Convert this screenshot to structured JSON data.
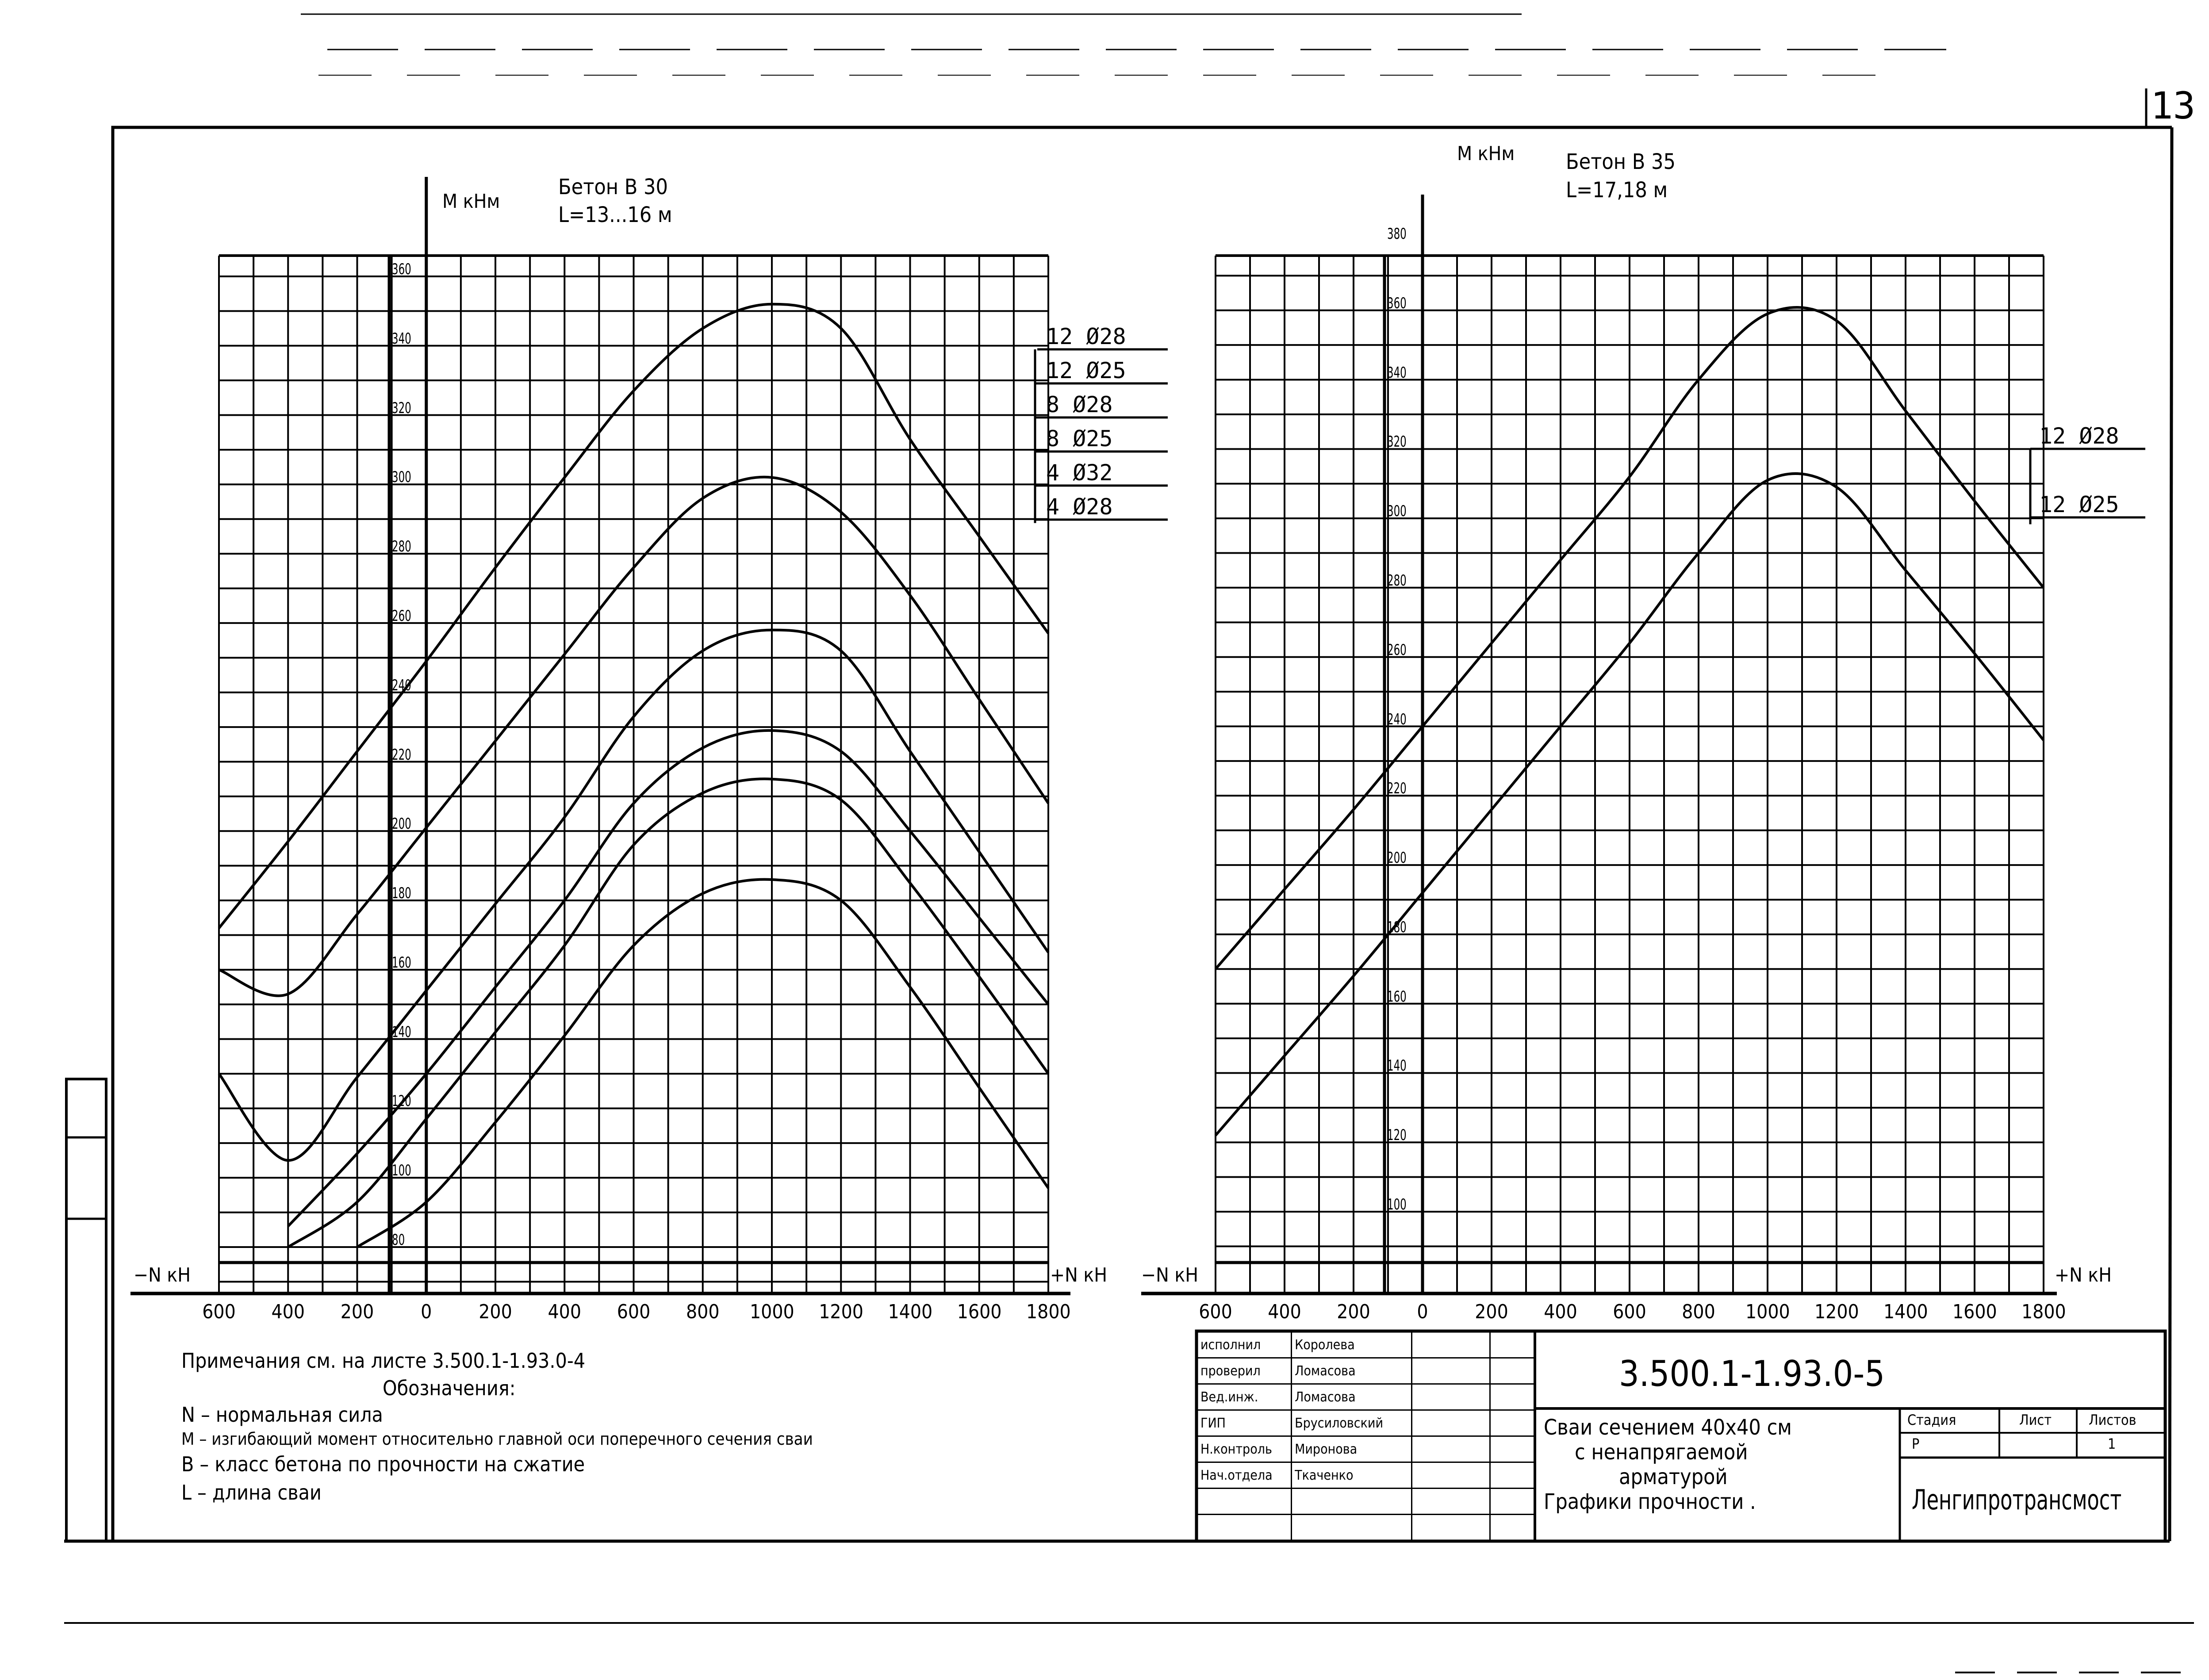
{
  "page_number": "13",
  "left_chart": {
    "y_axis_label": "M кНм",
    "concrete": "Бетон В 30",
    "length": "L=13...16 м",
    "neg_axis_label": "−N кН",
    "pos_axis_label": "+N кН",
    "y_ticks": [
      "360",
      "340",
      "320",
      "300",
      "280",
      "260",
      "240",
      "220",
      "200",
      "180",
      "160",
      "140",
      "120",
      "100",
      "80"
    ],
    "x_ticks": [
      "600",
      "400",
      "200",
      "0",
      "200",
      "400",
      "600",
      "800",
      "1000",
      "1200",
      "1400",
      "1600",
      "1800"
    ],
    "legend": [
      "12 Ø28",
      "12 Ø25",
      "8 Ø28",
      "8 Ø25",
      "4 Ø32",
      "4 Ø28"
    ]
  },
  "right_chart": {
    "y_axis_label": "M кНм",
    "concrete": "Бетон В 35",
    "length": "L=17,18 м",
    "neg_axis_label": "−N кН",
    "pos_axis_label": "+N кН",
    "y_ticks": [
      "380",
      "360",
      "340",
      "320",
      "300",
      "280",
      "260",
      "240",
      "220",
      "200",
      "180",
      "160",
      "140",
      "120",
      "100"
    ],
    "x_ticks": [
      "600",
      "400",
      "200",
      "0",
      "200",
      "400",
      "600",
      "800",
      "1000",
      "1200",
      "1400",
      "1600",
      "1800"
    ],
    "legend": [
      "12 Ø28",
      "12 Ø25"
    ]
  },
  "notes": {
    "reference": "Примечания см. на листе 3.500.1-1.93.0-4",
    "legend_title": "Обозначения:",
    "items": [
      "N – нормальная сила",
      "M – изгибающий момент относительно главной оси поперечного сечения сваи",
      "B – класс бетона по прочности на сжатие",
      "L – длина сваи"
    ]
  },
  "title_block": {
    "roles": [
      {
        "role": "исполнил",
        "name": "Королева"
      },
      {
        "role": "проверил",
        "name": "Ломасова"
      },
      {
        "role": "Вед.инж.",
        "name": "Ломасова"
      },
      {
        "role": "ГИП",
        "name": "Брусиловский"
      },
      {
        "role": "Н.контроль",
        "name": "Миронова"
      },
      {
        "role": "Нач.отдела",
        "name": "Ткаченко"
      }
    ],
    "doc_code": "3.500.1-1.93.0-5",
    "description": [
      "Сваи сечением 40x40 см",
      "с ненапрягаемой",
      "арматурой",
      "Графики прочности ."
    ],
    "stage_header": "Стадия",
    "sheet_header": "Лист",
    "sheets_header": "Листов",
    "stage_value": "Р",
    "sheet_value": "",
    "sheets_value": "1",
    "organization": "Ленгипротрансмост"
  },
  "chart_data": [
    {
      "type": "line",
      "title": "Бетон В 30, L=13...16 м",
      "xlabel": "N кН (−600 … +1800)",
      "ylabel": "M кНм",
      "xlim": [
        -600,
        1800
      ],
      "ylim": [
        80,
        360
      ],
      "grid": true,
      "legend_position": "right",
      "x": [
        -600,
        -400,
        -200,
        0,
        200,
        400,
        600,
        800,
        1000,
        1200,
        1400,
        1600,
        1800
      ],
      "series": [
        {
          "name": "12 Ø28",
          "values": [
            172,
            197,
            223,
            249,
            276,
            302,
            327,
            345,
            352,
            345,
            313,
            285,
            257
          ]
        },
        {
          "name": "12 Ø25",
          "values": [
            160,
            153,
            176,
            201,
            226,
            251,
            276,
            296,
            302,
            292,
            268,
            238,
            208
          ]
        },
        {
          "name": "8 Ø28",
          "values": [
            130,
            105,
            129,
            154,
            179,
            204,
            233,
            252,
            258,
            252,
            223,
            194,
            165
          ]
        },
        {
          "name": "8 Ø25",
          "values": [
            null,
            86,
            107,
            130,
            155,
            180,
            208,
            224,
            229,
            223,
            200,
            175,
            150
          ]
        },
        {
          "name": "4 Ø32",
          "values": [
            null,
            80,
            93,
            117,
            142,
            167,
            196,
            211,
            215,
            209,
            185,
            158,
            130
          ]
        },
        {
          "name": "4 Ø28",
          "values": [
            null,
            null,
            80,
            93,
            116,
            141,
            167,
            182,
            186,
            180,
            155,
            126,
            97
          ]
        }
      ]
    },
    {
      "type": "line",
      "title": "Бетон В 35, L=17,18 м",
      "xlabel": "N кН (−600 … +1800)",
      "ylabel": "M кНм",
      "xlim": [
        -600,
        1800
      ],
      "ylim": [
        100,
        380
      ],
      "grid": true,
      "legend_position": "right",
      "x": [
        -600,
        -400,
        -200,
        0,
        200,
        400,
        600,
        800,
        1000,
        1200,
        1400,
        1600,
        1800
      ],
      "series": [
        {
          "name": "12 Ø28",
          "values": [
            170,
            193,
            216,
            240,
            264,
            288,
            312,
            340,
            359,
            357,
            331,
            305,
            280
          ]
        },
        {
          "name": "12 Ø25",
          "values": [
            122,
            145,
            168,
            192,
            216,
            240,
            264,
            290,
            311,
            309,
            285,
            261,
            236
          ]
        }
      ]
    }
  ]
}
